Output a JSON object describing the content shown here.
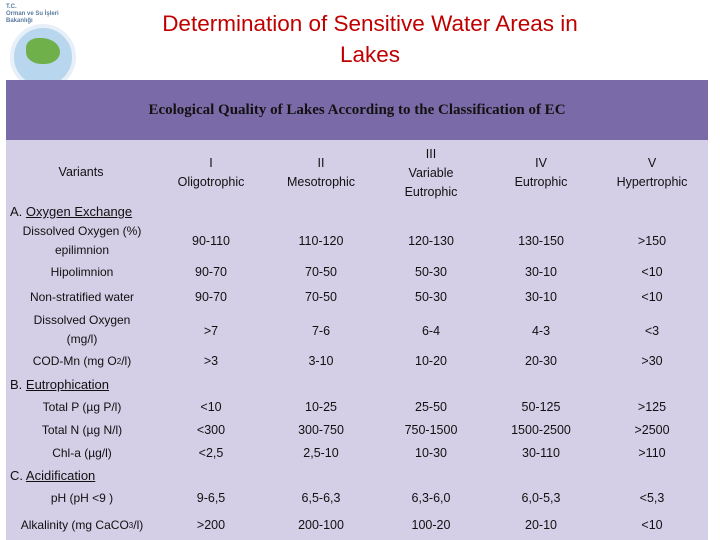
{
  "logo": {
    "text_line1": "T.C.",
    "text_line2": "Orman ve Su İşleri",
    "text_line3": "Bakanlığı"
  },
  "title_line1": "Determination of Sensitive Water Areas in",
  "title_line2": "Lakes",
  "banner": "Ecological Quality of Lakes According to the Classification of EC",
  "header": {
    "variants": "Variants",
    "classes": [
      {
        "num": "I",
        "name": "Oligotrophic",
        "name2": ""
      },
      {
        "num": "II",
        "name": "Mesotrophic",
        "name2": ""
      },
      {
        "num": "III",
        "name": "Variable",
        "name2": "Eutrophic"
      },
      {
        "num": "IV",
        "name": "Eutrophic",
        "name2": ""
      },
      {
        "num": "V",
        "name": "Hypertrophic",
        "name2": ""
      }
    ]
  },
  "sections": {
    "a_prefix": "A. ",
    "a": "Oxygen Exchange",
    "b_prefix": "B. ",
    "b": "Eutrophication",
    "c_prefix": "C. ",
    "c": "Acidification"
  },
  "rows": [
    {
      "label1": "Dissolved Oxygen  (%)",
      "label2": "epilimnion",
      "values": [
        "90-110",
        "110-120",
        "120-130",
        "130-150",
        ">150"
      ]
    },
    {
      "label1": "Hipolimnion",
      "label2": "",
      "values": [
        "90-70",
        "70-50",
        "50-30",
        "30-10",
        "<10"
      ]
    },
    {
      "label1": "Non-stratified water",
      "label2": "",
      "values": [
        "90-70",
        "70-50",
        "50-30",
        "30-10",
        "<10"
      ]
    },
    {
      "label1": "Dissolved Oxygen",
      "label2": "(mg/l)",
      "values": [
        ">7",
        "7-6",
        "6-4",
        "4-3",
        "<3"
      ]
    },
    {
      "label1": "COD-Mn (mg O",
      "label_sub": "2",
      "label_end": "/l)",
      "values": [
        ">3",
        "3-10",
        "10-20",
        "20-30",
        ">30"
      ]
    },
    {
      "label1": "Total P (µg P/l)",
      "values": [
        "<10",
        "10-25",
        "25-50",
        "50-125",
        ">125"
      ]
    },
    {
      "label1": "Total N (µg N/l)",
      "values": [
        "<300",
        "300-750",
        "750-1500",
        "1500-2500",
        ">2500"
      ]
    },
    {
      "label1": "Chl-a (µg/l)",
      "values": [
        "<2,5",
        "2,5-10",
        "10-30",
        "30-110",
        ">110"
      ]
    },
    {
      "label1": "pH (pH <9 )",
      "values": [
        "9-6,5",
        "6,5-6,3",
        "6,3-6,0",
        "6,0-5,3",
        "<5,3"
      ]
    },
    {
      "label1": "Alkalinity (mg CaCO",
      "label_sub": "3",
      "label_end": "/l)",
      "values": [
        ">200",
        "200-100",
        "100-20",
        "20-10",
        "<10"
      ]
    }
  ]
}
